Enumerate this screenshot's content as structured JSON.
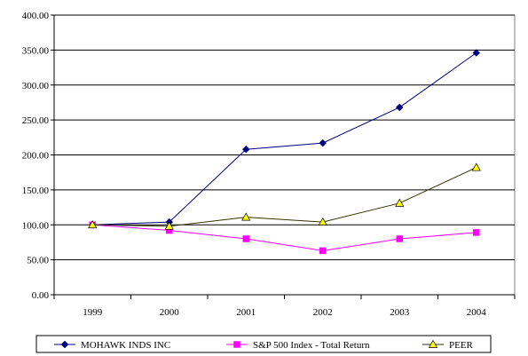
{
  "chart_data": {
    "type": "line",
    "categories": [
      "1999",
      "2000",
      "2001",
      "2002",
      "2003",
      "2004"
    ],
    "ylim": [
      0,
      400
    ],
    "yticks": [
      "0.00",
      "50.00",
      "100.00",
      "150.00",
      "200.00",
      "250.00",
      "300.00",
      "350.00",
      "400.00"
    ],
    "grid": true,
    "legend_position": "bottom",
    "series": [
      {
        "name": "MOHAWK INDS INC",
        "values": [
          100,
          104,
          208,
          217,
          268,
          346
        ],
        "color": "#000080",
        "marker": "diamond"
      },
      {
        "name": "S&P 500 Index - Total Return",
        "values": [
          100,
          92,
          80,
          63,
          80,
          89
        ],
        "color": "#ff00ff",
        "marker": "square"
      },
      {
        "name": "PEER",
        "values": [
          100,
          98,
          111,
          104,
          131,
          182
        ],
        "color": "#333300",
        "marker": "triangle",
        "marker_fill": "#ffff00"
      }
    ]
  }
}
